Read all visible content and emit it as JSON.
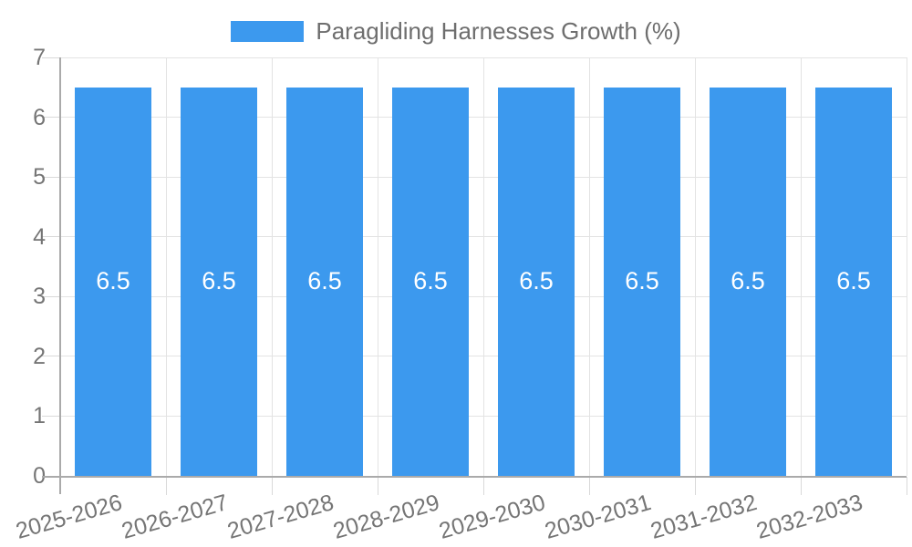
{
  "chart_data": {
    "type": "bar",
    "title": "Paragliding Harnesses Growth (%)",
    "categories": [
      "2025-2026",
      "2026-2027",
      "2027-2028",
      "2028-2029",
      "2029-2030",
      "2030-2031",
      "2031-2032",
      "2032-2033"
    ],
    "values": [
      6.5,
      6.5,
      6.5,
      6.5,
      6.5,
      6.5,
      6.5,
      6.5
    ],
    "value_labels": [
      "6.5",
      "6.5",
      "6.5",
      "6.5",
      "6.5",
      "6.5",
      "6.5",
      "6.5"
    ],
    "xlabel": "",
    "ylabel": "",
    "ylim": [
      0,
      7
    ],
    "yticks": [
      0,
      1,
      2,
      3,
      4,
      5,
      6,
      7
    ],
    "grid": true,
    "legend_position": "top",
    "colors": {
      "bar": "#3c99ee",
      "grid": "#e3e3e3",
      "tick_mark": "#d9d9d9",
      "axis": "#aaaaaa",
      "tick_text": "#757575",
      "legend_text": "#6e6e6e",
      "bar_label_text": "#ffffff",
      "background": "#ffffff"
    }
  }
}
